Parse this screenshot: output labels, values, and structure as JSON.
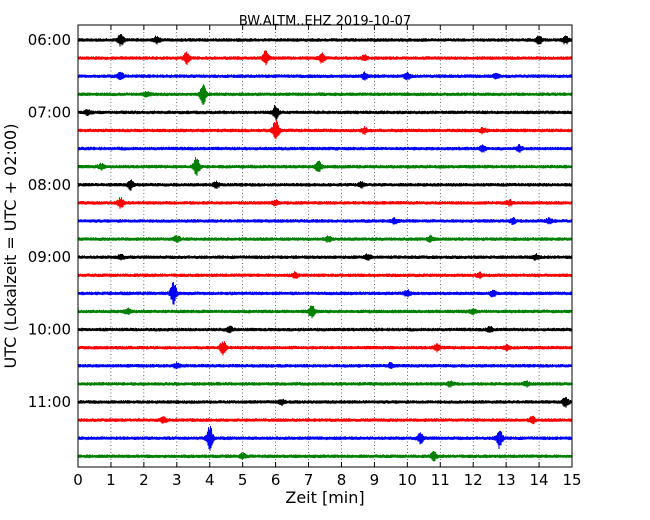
{
  "chart_data": {
    "type": "line",
    "title": "BW.ALTM..EHZ 2019-10-07",
    "xlabel": "Zeit  [min]",
    "ylabel": "UTC (Lokalzeit = UTC + 02:00)",
    "xlim": [
      0,
      15
    ],
    "x_ticks": [
      0,
      1,
      2,
      3,
      4,
      5,
      6,
      7,
      8,
      9,
      10,
      11,
      12,
      13,
      14,
      15
    ],
    "y_tick_labels": [
      "06:00",
      "07:00",
      "08:00",
      "09:00",
      "10:00",
      "11:00"
    ],
    "vertical_grid": "dotted",
    "trace_interval_min": 15,
    "colors": [
      "#000000",
      "#ff0000",
      "#0000ff",
      "#008000"
    ],
    "traces": [
      {
        "start": "06:00",
        "color": "#000000",
        "bursts": [
          {
            "t": 1.3,
            "amp": 0.9
          },
          {
            "t": 2.4,
            "amp": 0.6
          },
          {
            "t": 14.0,
            "amp": 0.6
          },
          {
            "t": 14.8,
            "amp": 0.6
          }
        ]
      },
      {
        "start": "06:15",
        "color": "#ff0000",
        "bursts": [
          {
            "t": 3.3,
            "amp": 0.9
          },
          {
            "t": 5.7,
            "amp": 1.1
          },
          {
            "t": 7.4,
            "amp": 0.8
          },
          {
            "t": 8.7,
            "amp": 0.4
          }
        ]
      },
      {
        "start": "06:30",
        "color": "#0000ff",
        "bursts": [
          {
            "t": 1.3,
            "amp": 0.6
          },
          {
            "t": 8.7,
            "amp": 0.5
          },
          {
            "t": 10.0,
            "amp": 0.5
          },
          {
            "t": 12.7,
            "amp": 0.4
          }
        ]
      },
      {
        "start": "06:45",
        "color": "#008000",
        "bursts": [
          {
            "t": 3.8,
            "amp": 1.6
          },
          {
            "t": 2.1,
            "amp": 0.4
          }
        ]
      },
      {
        "start": "07:00",
        "color": "#000000",
        "bursts": [
          {
            "t": 6.0,
            "amp": 1.1
          },
          {
            "t": 0.3,
            "amp": 0.4
          }
        ]
      },
      {
        "start": "07:15",
        "color": "#ff0000",
        "bursts": [
          {
            "t": 6.0,
            "amp": 1.9
          },
          {
            "t": 8.7,
            "amp": 0.5
          },
          {
            "t": 12.3,
            "amp": 0.4
          }
        ]
      },
      {
        "start": "07:30",
        "color": "#0000ff",
        "bursts": [
          {
            "t": 12.3,
            "amp": 0.5
          },
          {
            "t": 13.4,
            "amp": 0.5
          }
        ]
      },
      {
        "start": "07:45",
        "color": "#008000",
        "bursts": [
          {
            "t": 3.6,
            "amp": 1.5
          },
          {
            "t": 7.3,
            "amp": 0.9
          },
          {
            "t": 0.7,
            "amp": 0.4
          }
        ]
      },
      {
        "start": "08:00",
        "color": "#000000",
        "bursts": [
          {
            "t": 1.6,
            "amp": 0.7
          },
          {
            "t": 4.2,
            "amp": 0.5
          },
          {
            "t": 8.6,
            "amp": 0.4
          }
        ]
      },
      {
        "start": "08:15",
        "color": "#ff0000",
        "bursts": [
          {
            "t": 1.3,
            "amp": 0.8
          },
          {
            "t": 6.0,
            "amp": 0.4
          },
          {
            "t": 13.1,
            "amp": 0.4
          }
        ]
      },
      {
        "start": "08:30",
        "color": "#0000ff",
        "bursts": [
          {
            "t": 9.6,
            "amp": 0.4
          },
          {
            "t": 13.2,
            "amp": 0.4
          },
          {
            "t": 14.3,
            "amp": 0.4
          }
        ]
      },
      {
        "start": "08:45",
        "color": "#008000",
        "bursts": [
          {
            "t": 3.0,
            "amp": 0.5
          },
          {
            "t": 7.6,
            "amp": 0.4
          },
          {
            "t": 10.7,
            "amp": 0.4
          }
        ]
      },
      {
        "start": "09:00",
        "color": "#000000",
        "bursts": [
          {
            "t": 1.3,
            "amp": 0.4
          },
          {
            "t": 8.8,
            "amp": 0.5
          },
          {
            "t": 13.9,
            "amp": 0.4
          }
        ]
      },
      {
        "start": "09:15",
        "color": "#ff0000",
        "bursts": [
          {
            "t": 6.6,
            "amp": 0.4
          },
          {
            "t": 12.2,
            "amp": 0.4
          }
        ]
      },
      {
        "start": "09:30",
        "color": "#0000ff",
        "bursts": [
          {
            "t": 2.9,
            "amp": 1.8
          },
          {
            "t": 10.0,
            "amp": 0.5
          },
          {
            "t": 12.6,
            "amp": 0.5
          }
        ]
      },
      {
        "start": "09:45",
        "color": "#008000",
        "bursts": [
          {
            "t": 7.1,
            "amp": 1.0
          },
          {
            "t": 1.5,
            "amp": 0.4
          },
          {
            "t": 12.0,
            "amp": 0.4
          }
        ]
      },
      {
        "start": "10:00",
        "color": "#000000",
        "bursts": [
          {
            "t": 4.6,
            "amp": 0.5
          },
          {
            "t": 12.5,
            "amp": 0.4
          }
        ]
      },
      {
        "start": "10:15",
        "color": "#ff0000",
        "bursts": [
          {
            "t": 4.4,
            "amp": 1.1
          },
          {
            "t": 10.9,
            "amp": 0.5
          },
          {
            "t": 13.0,
            "amp": 0.4
          }
        ]
      },
      {
        "start": "10:30",
        "color": "#0000ff",
        "bursts": [
          {
            "t": 3.0,
            "amp": 0.4
          },
          {
            "t": 9.5,
            "amp": 0.4
          }
        ]
      },
      {
        "start": "10:45",
        "color": "#008000",
        "bursts": [
          {
            "t": 11.3,
            "amp": 0.4
          },
          {
            "t": 13.6,
            "amp": 0.4
          }
        ]
      },
      {
        "start": "11:00",
        "color": "#000000",
        "bursts": [
          {
            "t": 14.8,
            "amp": 0.7
          },
          {
            "t": 6.2,
            "amp": 0.4
          }
        ]
      },
      {
        "start": "11:15",
        "color": "#ff0000",
        "bursts": [
          {
            "t": 13.8,
            "amp": 0.5
          },
          {
            "t": 2.6,
            "amp": 0.4
          }
        ]
      },
      {
        "start": "11:30",
        "color": "#0000ff",
        "bursts": [
          {
            "t": 4.0,
            "amp": 2.0
          },
          {
            "t": 12.8,
            "amp": 1.6
          },
          {
            "t": 10.4,
            "amp": 0.8
          }
        ]
      },
      {
        "start": "11:45",
        "color": "#008000",
        "bursts": [
          {
            "t": 10.8,
            "amp": 0.6
          },
          {
            "t": 5.0,
            "amp": 0.4
          }
        ]
      }
    ]
  }
}
